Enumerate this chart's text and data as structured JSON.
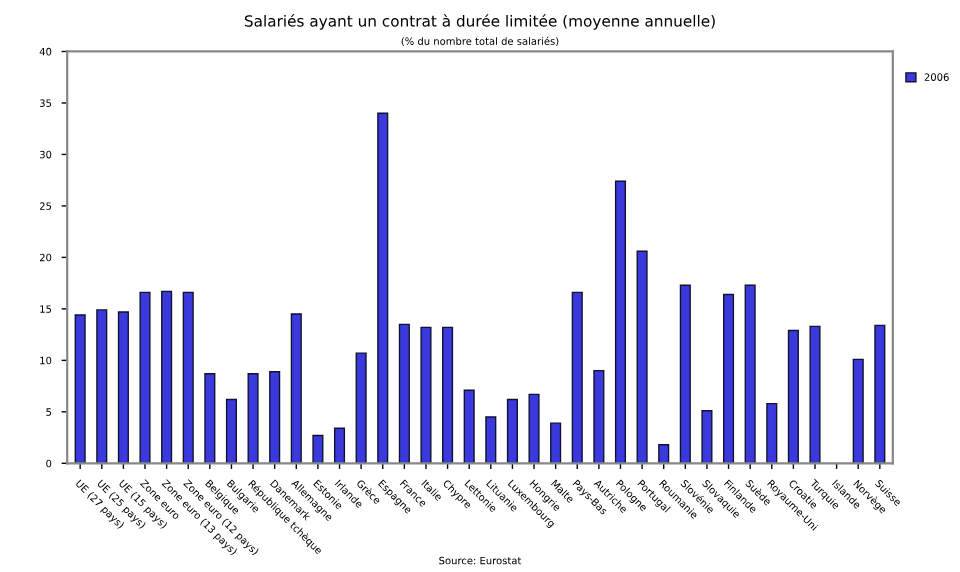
{
  "chart_data": {
    "type": "bar",
    "title": "Salariés ayant un contrat à durée limitée (moyenne annuelle)",
    "subtitle": "(% du nombre total de salariés)",
    "categories": [
      "UE (27 pays)",
      "UE (25 pays)",
      "UE (15 pays)",
      "Zone euro",
      "Zone euro (13 pays)",
      "Zone euro (12 pays)",
      "Belgique",
      "Bulgarie",
      "République tchèque",
      "Danemark",
      "Allemagne",
      "Estonie",
      "Irlande",
      "Grèce",
      "Espagne",
      "France",
      "Italie",
      "Chypre",
      "Lettonie",
      "Lituanie",
      "Luxembourg",
      "Hongrie",
      "Malte",
      "Pays-Bas",
      "Autriche",
      "Pologne",
      "Portugal",
      "Roumanie",
      "Slovénie",
      "Slovaquie",
      "Finlande",
      "Suède",
      "Royaume-Uni",
      "Croatie",
      "Turquie",
      "Islande",
      "Norvège",
      "Suisse"
    ],
    "series": [
      {
        "name": "2006",
        "color": "#3a3adc",
        "values": [
          14.4,
          14.9,
          14.7,
          16.6,
          16.7,
          16.6,
          8.7,
          6.2,
          8.7,
          8.9,
          14.5,
          2.7,
          3.4,
          10.7,
          34.0,
          13.5,
          13.2,
          13.2,
          7.1,
          4.5,
          6.2,
          6.7,
          3.9,
          16.6,
          9.0,
          27.4,
          20.6,
          1.8,
          17.3,
          5.1,
          16.4,
          17.3,
          5.8,
          12.9,
          13.3,
          null,
          10.1,
          13.4
        ]
      }
    ],
    "ylim": [
      0,
      40
    ],
    "yticks": [
      0,
      5,
      10,
      15,
      20,
      25,
      30,
      35,
      40
    ],
    "grid": false,
    "legend": "top right",
    "annotations": [
      "Source: Eurostat"
    ]
  }
}
